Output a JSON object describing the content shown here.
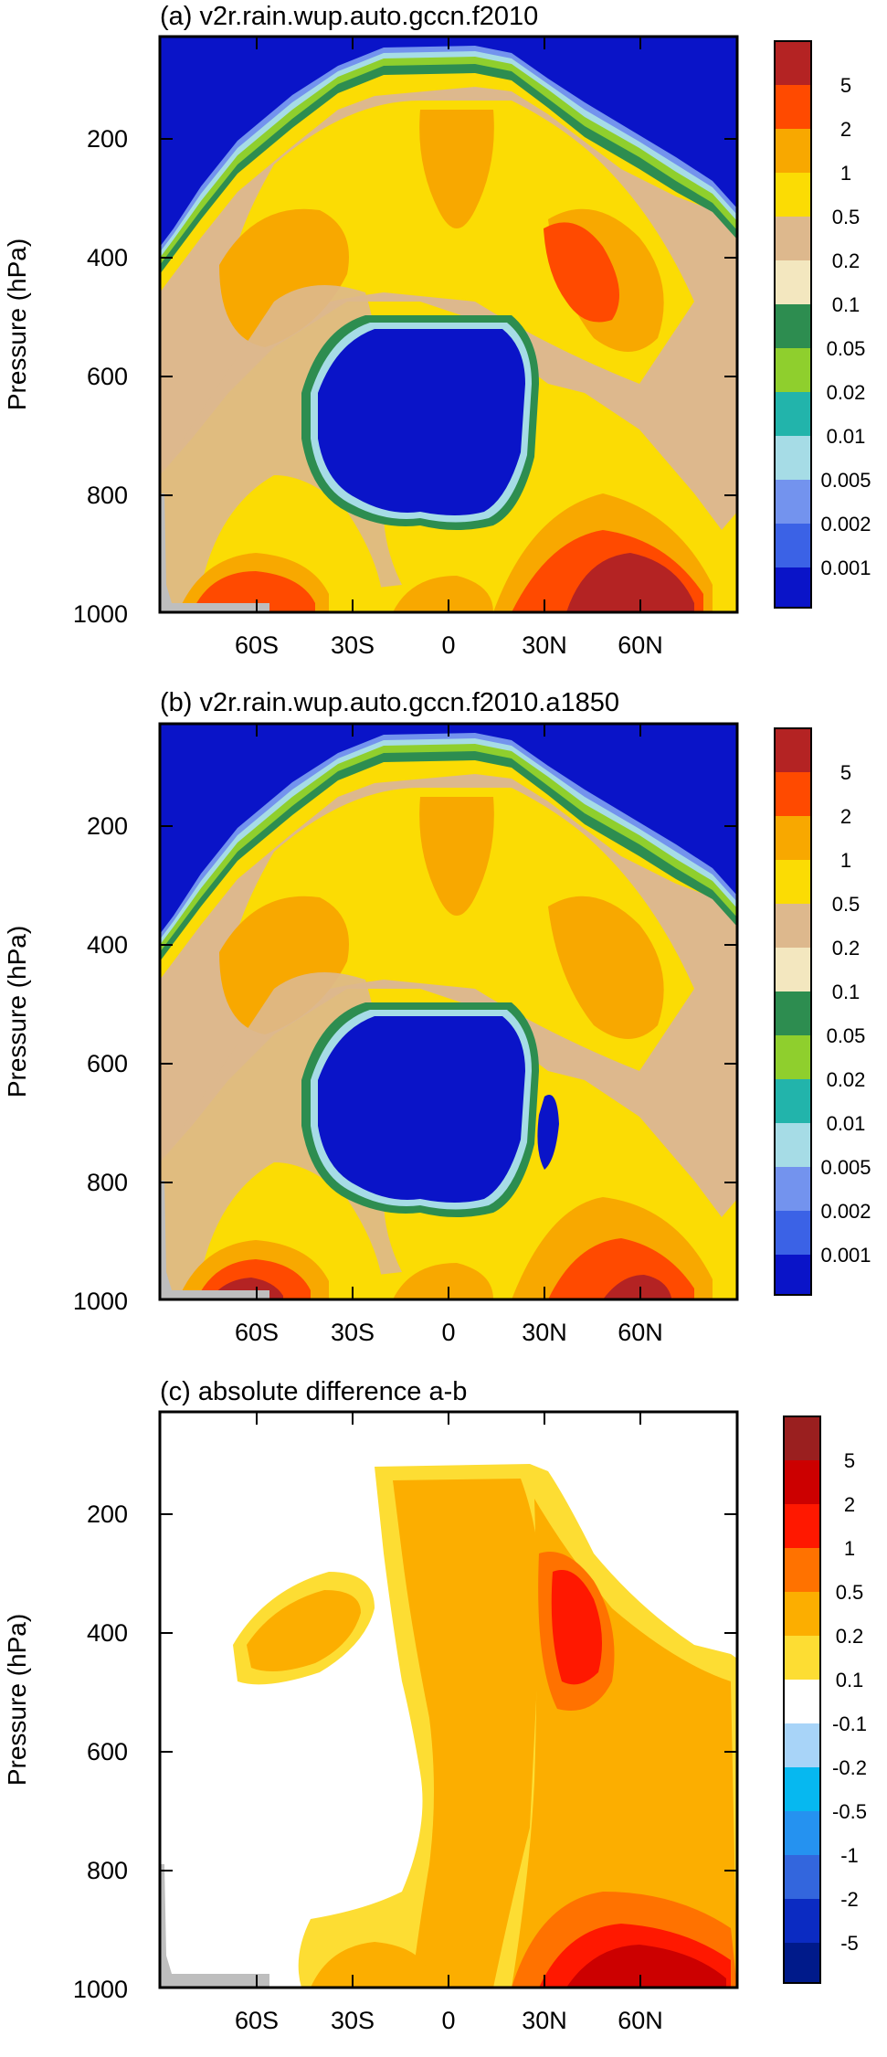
{
  "colors": {
    "ratio_scale": [
      "#0a14c8",
      "#3b62e6",
      "#7393ee",
      "#a6dce6",
      "#22b4ab",
      "#8fcf2d",
      "#2d8d50",
      "#f3e7bf",
      "#ddb88d",
      "#fbdc04",
      "#f8a800",
      "#ff4a00",
      "#b42323"
    ],
    "diff_scale": [
      "#001a8a",
      "#0b2bc2",
      "#3366dd",
      "#2592f0",
      "#06b8f0",
      "#a8d4f8",
      "#ffffff",
      "#fddd33",
      "#fcae00",
      "#ff7200",
      "#ff1800",
      "#cc0000",
      "#9a1f1f"
    ],
    "terrain": "#bebebe"
  },
  "chart_data": [
    {
      "type": "contour",
      "title": "(a) v2r.rain.wup.auto.gccn.f2010",
      "xlabel": "",
      "ylabel": "Pressure (hPa)",
      "x_ticks": [
        "60S",
        "30S",
        "0",
        "30N",
        "60N"
      ],
      "x_tick_values": [
        -60,
        -30,
        0,
        30,
        60
      ],
      "xlim": [
        -90,
        90
      ],
      "y_ticks": [
        "200",
        "400",
        "600",
        "800",
        "1000"
      ],
      "y_tick_values": [
        200,
        400,
        600,
        800,
        1000
      ],
      "ylim": [
        1000,
        50
      ],
      "y_reversed": true,
      "colorbar_labels": [
        "5",
        "2",
        "1",
        "0.5",
        "0.2",
        "0.1",
        "0.05",
        "0.02",
        "0.01",
        "0.005",
        "0.002",
        "0.001"
      ],
      "colorbar_levels": [
        0.001,
        0.002,
        0.005,
        0.01,
        0.02,
        0.05,
        0.1,
        0.2,
        0.5,
        1,
        2,
        5
      ],
      "scale": "ratio_scale"
    },
    {
      "type": "contour",
      "title": "(b) v2r.rain.wup.auto.gccn.f2010.a1850",
      "xlabel": "",
      "ylabel": "Pressure (hPa)",
      "x_ticks": [
        "60S",
        "30S",
        "0",
        "30N",
        "60N"
      ],
      "x_tick_values": [
        -60,
        -30,
        0,
        30,
        60
      ],
      "xlim": [
        -90,
        90
      ],
      "y_ticks": [
        "200",
        "400",
        "600",
        "800",
        "1000"
      ],
      "y_tick_values": [
        200,
        400,
        600,
        800,
        1000
      ],
      "ylim": [
        1000,
        50
      ],
      "y_reversed": true,
      "colorbar_labels": [
        "5",
        "2",
        "1",
        "0.5",
        "0.2",
        "0.1",
        "0.05",
        "0.02",
        "0.01",
        "0.005",
        "0.002",
        "0.001"
      ],
      "colorbar_levels": [
        0.001,
        0.002,
        0.005,
        0.01,
        0.02,
        0.05,
        0.1,
        0.2,
        0.5,
        1,
        2,
        5
      ],
      "scale": "ratio_scale"
    },
    {
      "type": "contour",
      "title": "(c) absolute difference a-b",
      "xlabel": "",
      "ylabel": "Pressure (hPa)",
      "x_ticks": [
        "60S",
        "30S",
        "0",
        "30N",
        "60N"
      ],
      "x_tick_values": [
        -60,
        -30,
        0,
        30,
        60
      ],
      "xlim": [
        -90,
        90
      ],
      "y_ticks": [
        "200",
        "400",
        "600",
        "800",
        "1000"
      ],
      "y_tick_values": [
        200,
        400,
        600,
        800,
        1000
      ],
      "ylim": [
        1000,
        50
      ],
      "y_reversed": true,
      "colorbar_labels": [
        "5",
        "2",
        "1",
        "0.5",
        "0.2",
        "0.1",
        "-0.1",
        "-0.2",
        "-0.5",
        "-1",
        "-2",
        "-5"
      ],
      "colorbar_levels": [
        -5,
        -2,
        -1,
        -0.5,
        -0.2,
        -0.1,
        0.1,
        0.2,
        0.5,
        1,
        2,
        5
      ],
      "scale": "diff_scale"
    }
  ]
}
